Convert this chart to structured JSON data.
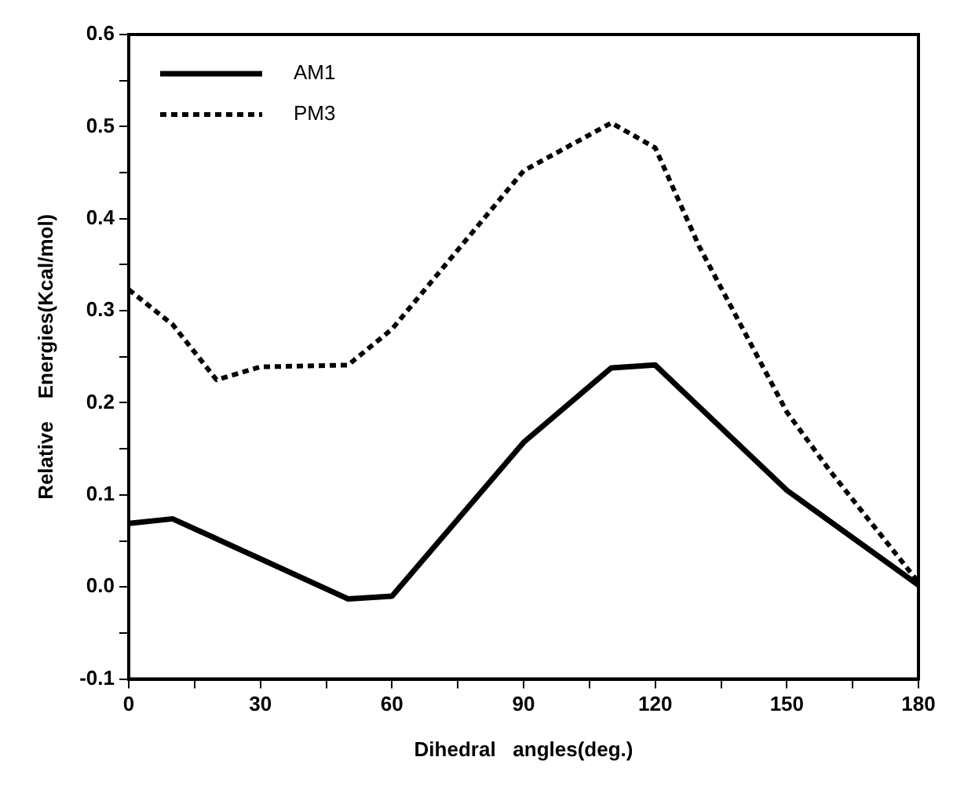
{
  "chart_data": {
    "type": "line",
    "xlabel": "Dihedral   angles(deg.)",
    "ylabel": "Relative    Energies(Kcal/mol)",
    "xlim": [
      0,
      180
    ],
    "xticks": [
      0,
      {
        "value": 15,
        "label": null
      },
      30,
      {
        "value": 45,
        "label": null
      },
      60,
      {
        "value": 75,
        "label": null
      },
      90,
      {
        "value": 105,
        "label": null
      },
      120,
      {
        "value": 135,
        "label": null
      },
      150,
      {
        "value": 165,
        "label": null
      },
      180
    ],
    "ylim": [
      -0.1,
      0.6
    ],
    "yticks": [
      -0.1,
      {
        "value": -0.05,
        "label": null
      },
      {
        "value": 0,
        "label": "0.0"
      },
      {
        "value": 0.05,
        "label": null
      },
      0.1,
      {
        "value": 0.15,
        "label": null
      },
      0.2,
      {
        "value": 0.25,
        "label": null
      },
      0.3,
      {
        "value": 0.35,
        "label": null
      },
      0.4,
      {
        "value": 0.45,
        "label": null
      },
      0.5,
      {
        "value": 0.55,
        "label": null
      },
      0.6
    ],
    "grid": false,
    "legend": "top left",
    "marker": "none",
    "series": [
      {
        "name": "AM1",
        "color": "#000000",
        "line_style": "solid",
        "x": [
          0,
          10,
          50,
          60,
          90,
          110,
          120,
          150,
          180
        ],
        "values": [
          0.069,
          0.074,
          -0.013,
          -0.01,
          0.157,
          0.238,
          0.241,
          0.105,
          0.002
        ]
      },
      {
        "name": "PM3",
        "color": "#000000",
        "line_style": "dotted",
        "x": [
          0,
          10,
          20,
          30,
          50,
          60,
          90,
          110,
          120,
          130,
          140,
          150,
          160,
          170,
          180
        ],
        "values": [
          0.323,
          0.285,
          0.225,
          0.239,
          0.241,
          0.28,
          0.452,
          0.504,
          0.477,
          0.37,
          0.28,
          0.19,
          0.125,
          0.065,
          0.005
        ]
      }
    ]
  }
}
